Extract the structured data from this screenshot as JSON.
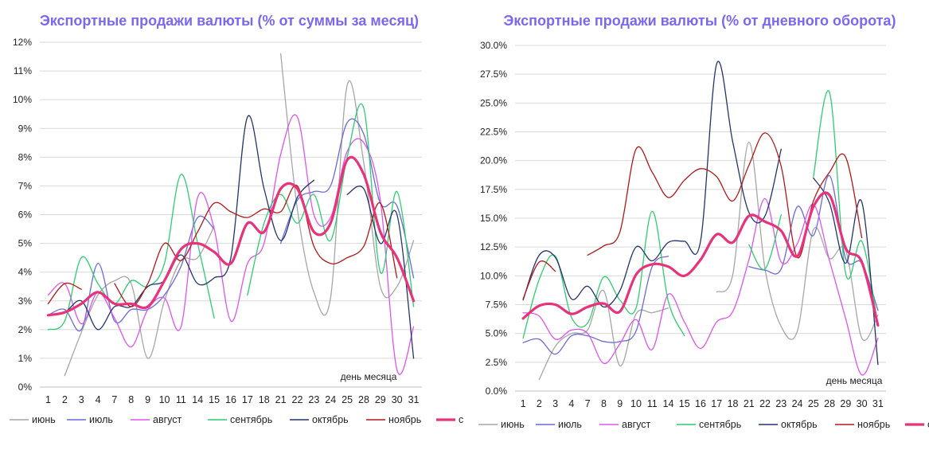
{
  "chart_data": [
    {
      "type": "line",
      "title": "Экспортные продажи валюты (% от суммы за месяц)",
      "x_note": "день месяца",
      "categories": [
        "1",
        "2",
        "3",
        "4",
        "7",
        "8",
        "9",
        "10",
        "11",
        "14",
        "15",
        "16",
        "17",
        "18",
        "21",
        "22",
        "23",
        "24",
        "25",
        "28",
        "29",
        "30",
        "31"
      ],
      "ylim": [
        0,
        12
      ],
      "y_ticks": [
        0,
        1,
        2,
        3,
        4,
        5,
        6,
        7,
        8,
        9,
        10,
        11,
        12
      ],
      "y_tick_labels": [
        "0%",
        "1%",
        "2%",
        "3%",
        "4%",
        "5%",
        "6%",
        "7%",
        "8%",
        "9%",
        "10%",
        "11%",
        "12%"
      ],
      "grid": true,
      "legend_position": "bottom",
      "series": [
        {
          "name": "июнь",
          "color": "#a6a6a6",
          "width": 1.3,
          "values": [
            null,
            0.4,
            1.9,
            3.2,
            3.7,
            3.6,
            1.0,
            3.0,
            4.4,
            4.5,
            5.6,
            null,
            null,
            null,
            11.6,
            6.2,
            3.3,
            3.1,
            10.5,
            7.8,
            3.5,
            3.5,
            5.1
          ]
        },
        {
          "name": "июль",
          "color": "#6a6ad8",
          "width": 1.3,
          "values": [
            2.5,
            2.7,
            2.0,
            4.3,
            2.3,
            2.7,
            2.7,
            3.2,
            4.2,
            5.9,
            5.5,
            null,
            null,
            null,
            5.0,
            6.5,
            6.8,
            7.0,
            9.2,
            8.8,
            6.4,
            6.3,
            3.8
          ]
        },
        {
          "name": "август",
          "color": "#dd55ee",
          "width": 1.3,
          "values": [
            3.2,
            3.6,
            2.2,
            3.3,
            2.4,
            1.4,
            2.7,
            3.1,
            2.1,
            6.6,
            5.5,
            2.3,
            4.3,
            5.0,
            8.1,
            9.4,
            6.0,
            5.9,
            8.2,
            8.5,
            6.5,
            0.6,
            2.1
          ]
        },
        {
          "name": "сентябрь",
          "color": "#2ecc71",
          "width": 1.3,
          "values": [
            2.0,
            2.3,
            4.5,
            3.6,
            2.9,
            3.7,
            3.5,
            4.3,
            7.4,
            5.0,
            2.4,
            null,
            3.2,
            5.7,
            6.7,
            5.7,
            6.7,
            5.1,
            8.0,
            9.7,
            4.0,
            6.8,
            2.8
          ]
        },
        {
          "name": "октябрь",
          "color": "#24346b",
          "width": 1.3,
          "values": [
            2.5,
            2.6,
            3.0,
            2.0,
            2.8,
            2.8,
            3.5,
            3.7,
            4.6,
            3.6,
            3.8,
            4.5,
            9.4,
            6.9,
            5.1,
            6.6,
            7.2,
            null,
            6.7,
            6.9,
            5.0,
            6.0,
            1.0
          ]
        },
        {
          "name": "ноябрь",
          "color": "#b01818",
          "width": 1.3,
          "values": [
            2.9,
            3.6,
            3.4,
            null,
            3.6,
            2.8,
            3.6,
            5.0,
            4.4,
            5.4,
            6.4,
            6.1,
            5.9,
            6.2,
            6.1,
            7.0,
            4.9,
            4.3,
            4.5,
            4.9,
            6.4,
            3.8,
            null
          ]
        },
        {
          "name": "среднее",
          "color": "#e8337a",
          "width": 3.2,
          "values": [
            2.5,
            2.6,
            2.9,
            3.3,
            2.9,
            2.9,
            2.8,
            3.7,
            4.8,
            5.0,
            4.7,
            4.3,
            5.7,
            5.4,
            6.9,
            6.9,
            5.4,
            5.7,
            7.9,
            7.4,
            5.4,
            4.5,
            3.0
          ]
        }
      ]
    },
    {
      "type": "line",
      "title": "Экспортные продажи валюты (% от дневного оборота)",
      "x_note": "день месяца",
      "categories": [
        "1",
        "2",
        "3",
        "4",
        "7",
        "8",
        "9",
        "10",
        "11",
        "14",
        "15",
        "16",
        "17",
        "18",
        "21",
        "22",
        "23",
        "24",
        "25",
        "28",
        "29",
        "30",
        "31"
      ],
      "ylim": [
        0,
        30
      ],
      "y_ticks": [
        0,
        2.5,
        5,
        7.5,
        10,
        12.5,
        15,
        17.5,
        20,
        22.5,
        25,
        27.5,
        30
      ],
      "y_tick_labels": [
        "0.0%",
        "2.5%",
        "5.0%",
        "7.5%",
        "10.0%",
        "12.5%",
        "15.0%",
        "17.5%",
        "20.0%",
        "22.5%",
        "25.0%",
        "27.5%",
        "30.0%"
      ],
      "grid": true,
      "legend_position": "bottom",
      "series": [
        {
          "name": "июнь",
          "color": "#a6a6a6",
          "width": 1.3,
          "values": [
            null,
            1.0,
            3.9,
            5.0,
            5.3,
            8.7,
            2.2,
            6.7,
            6.8,
            7.2,
            null,
            null,
            8.6,
            10.1,
            21.6,
            10.6,
            5.6,
            5.2,
            14.0,
            11.5,
            12.2,
            4.6,
            6.6
          ]
        },
        {
          "name": "июль",
          "color": "#6a6ad8",
          "width": 1.3,
          "values": [
            4.2,
            4.5,
            3.2,
            4.8,
            4.8,
            4.3,
            4.3,
            5.2,
            10.8,
            11.7,
            null,
            null,
            null,
            null,
            10.8,
            10.5,
            10.6,
            16.0,
            13.5,
            18.7,
            11.5,
            11.1,
            7.0
          ]
        },
        {
          "name": "август",
          "color": "#dd55ee",
          "width": 1.3,
          "values": [
            6.8,
            6.5,
            4.5,
            5.3,
            5.0,
            2.4,
            4.1,
            6.2,
            3.6,
            8.4,
            6.0,
            3.7,
            6.0,
            6.9,
            11.4,
            16.7,
            11.2,
            12.8,
            16.2,
            11.3,
            6.3,
            1.4,
            4.6
          ]
        },
        {
          "name": "сентябрь",
          "color": "#2ecc71",
          "width": 1.3,
          "values": [
            4.6,
            9.7,
            11.7,
            6.4,
            5.9,
            9.9,
            7.9,
            7.2,
            15.6,
            7.8,
            4.8,
            null,
            null,
            null,
            12.7,
            10.6,
            15.3,
            null,
            18.6,
            25.9,
            10.2,
            13.0,
            5.7
          ]
        },
        {
          "name": "октябрь",
          "color": "#24346b",
          "width": 1.3,
          "values": [
            7.9,
            11.8,
            11.6,
            8.0,
            9.1,
            7.3,
            8.7,
            12.5,
            11.3,
            12.9,
            13.0,
            13.0,
            28.4,
            21.6,
            15.5,
            15.2,
            21.0,
            null,
            18.5,
            16.3,
            11.1,
            16.4,
            2.3
          ]
        },
        {
          "name": "ноябрь",
          "color": "#b01818",
          "width": 1.3,
          "values": [
            8.0,
            11.2,
            10.4,
            null,
            11.8,
            12.6,
            13.8,
            21.0,
            19.0,
            16.8,
            18.3,
            19.3,
            18.6,
            16.5,
            19.6,
            22.4,
            19.5,
            11.6,
            16.5,
            19.0,
            20.3,
            13.3,
            null
          ]
        },
        {
          "name": "среднее",
          "color": "#e8337a",
          "width": 3.2,
          "values": [
            6.3,
            7.4,
            7.5,
            6.7,
            7.3,
            7.6,
            6.9,
            10.1,
            11.0,
            10.8,
            10.0,
            11.4,
            13.6,
            12.9,
            15.2,
            14.7,
            13.9,
            11.7,
            16.0,
            17.0,
            12.4,
            11.2,
            5.7
          ]
        }
      ]
    }
  ]
}
